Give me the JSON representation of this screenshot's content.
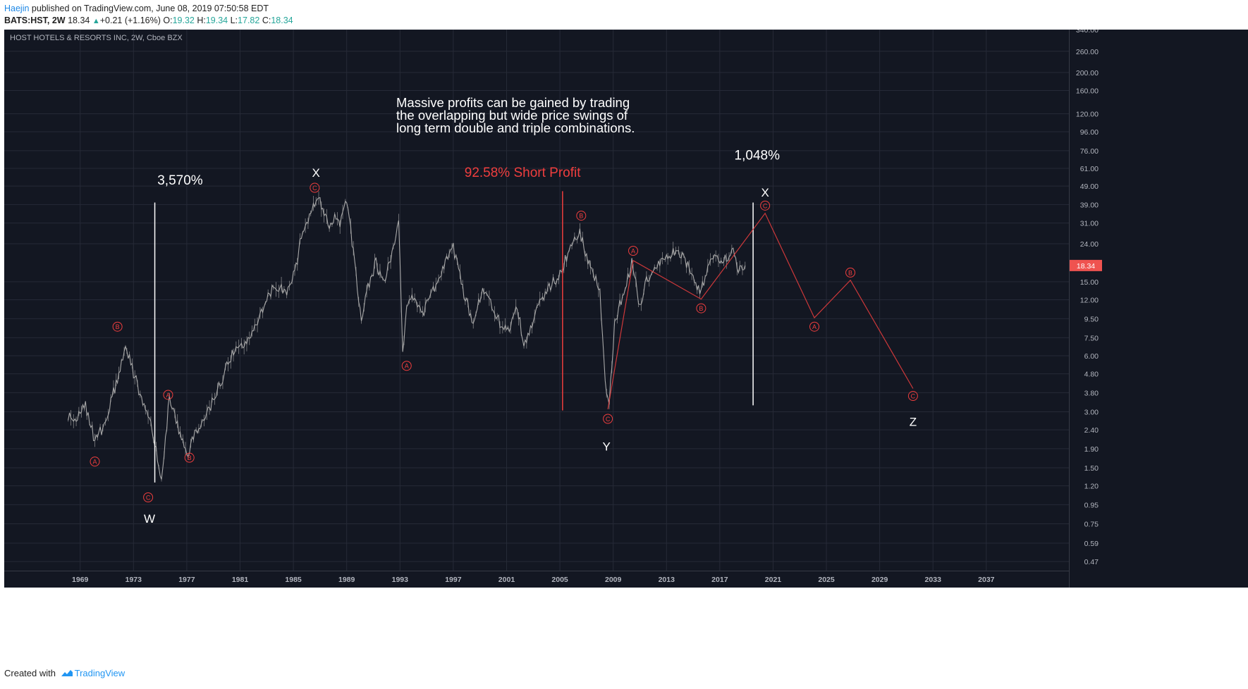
{
  "header": {
    "author": "Haejin",
    "published": "published on TradingView.com, June 08, 2019 07:50:58 EDT",
    "symbol": "BATS:HST, 2W",
    "last": "18.34",
    "change": "+0.21 (+1.16%)",
    "o_label": "O:",
    "o": "19.32",
    "h_label": "H:",
    "h": "19.34",
    "l_label": "L:",
    "l": "17.82",
    "c_label": "C:",
    "c": "18.34"
  },
  "footer": {
    "created_with": "Created with",
    "brand": "TradingView"
  },
  "colors": {
    "background": "#131722",
    "grid": "#262a37",
    "text": "#b2b5be",
    "white": "#ffffff",
    "red": "#ef3e3e",
    "candle": "#a8a8a8",
    "price_tag": "#ef5350"
  },
  "chart_data": {
    "type": "line",
    "title": "HOST HOTELS & RESORTS INC, 2W, Cboe BZX",
    "y_scale": "log",
    "ylim": [
      0.42,
      340
    ],
    "xlim": [
      1963.8,
      2043.7
    ],
    "y_ticks": [
      "340.00",
      "260.00",
      "200.00",
      "160.00",
      "120.00",
      "96.00",
      "76.00",
      "61.00",
      "49.00",
      "39.00",
      "31.00",
      "24.00",
      "18.34",
      "15.00",
      "12.00",
      "9.50",
      "7.50",
      "6.00",
      "4.80",
      "3.80",
      "3.00",
      "2.40",
      "1.90",
      "1.50",
      "1.20",
      "0.95",
      "0.75",
      "0.59",
      "0.47"
    ],
    "x_ticks": [
      "1969",
      "1973",
      "1977",
      "1981",
      "1985",
      "1989",
      "1993",
      "1997",
      "2001",
      "2005",
      "2009",
      "2013",
      "2017",
      "2021",
      "2025",
      "2029",
      "2033",
      "2037"
    ],
    "last_price": 18.34,
    "series": [
      {
        "x": [
          1968.6,
          1969.2,
          1969.9,
          1970.6,
          1971.4,
          1972.2,
          1972.9,
          1973.6,
          1974.2,
          1974.9,
          1975.6,
          1976.2,
          1976.8,
          1977.6,
          1978.2,
          1979.0,
          1980.0,
          1980.9,
          1981.6,
          1982.5,
          1983.3,
          1984.1,
          1985.0,
          1985.7,
          1986.2,
          1986.8,
          1987.3,
          1987.7,
          1988.1,
          1988.5,
          1989.0,
          1989.5,
          1990.0,
          1990.6,
          1991.1,
          1991.7,
          1992.3,
          1992.9,
          1993.4,
          1993.7,
          1994.0,
          1994.5,
          1995.2,
          1996.0,
          1996.8,
          1997.5,
          1998.3,
          1999.0,
          1999.7,
          2000.3,
          2001.0,
          2001.6,
          2002.3,
          2002.8,
          2003.3,
          2003.9,
          2004.7,
          2005.5,
          2006.3,
          2007.0,
          2007.5,
          2008.0,
          2008.5,
          2008.9,
          2009.2,
          2009.6,
          2010.2,
          2010.9,
          2011.5,
          2012.0,
          2012.6,
          2013.4,
          2014.2,
          2014.8,
          2015.4,
          2016.0,
          2016.7,
          2017.3,
          2018.0,
          2018.5,
          2018.9,
          2019.4
        ],
        "values": [
          2.9,
          2.8,
          3.2,
          2.1,
          2.6,
          4.3,
          6.8,
          4.6,
          3.4,
          2.4,
          1.3,
          3.6,
          2.5,
          1.8,
          2.4,
          2.9,
          4.2,
          6.2,
          6.8,
          8.2,
          11.0,
          14.5,
          13.0,
          18.0,
          29.0,
          34.0,
          44.0,
          38.0,
          30.0,
          33.0,
          31.0,
          40.0,
          22.0,
          9.0,
          14.0,
          19.0,
          14.5,
          22.0,
          31.0,
          6.5,
          10.5,
          12.5,
          10.0,
          13.5,
          18.0,
          23.0,
          13.0,
          8.5,
          14.0,
          11.5,
          9.0,
          8.0,
          11.0,
          7.0,
          8.5,
          11.0,
          14.0,
          16.5,
          23.0,
          28.0,
          20.0,
          17.0,
          13.0,
          4.5,
          3.2,
          9.0,
          12.5,
          19.0,
          11.0,
          15.0,
          17.5,
          20.0,
          22.5,
          20.0,
          17.0,
          13.0,
          19.0,
          20.5,
          19.5,
          22.0,
          17.0,
          18.34
        ]
      }
    ],
    "annotations": {
      "big_labels": [
        {
          "text": "3,570%",
          "x": 1977.0,
          "y": 50.0,
          "color": "white"
        },
        {
          "text": "X",
          "x": 1987.2,
          "y": 55.0,
          "color": "white"
        },
        {
          "text": "92.58% Short Profit",
          "x": 2002.7,
          "y": 55.0,
          "color": "red"
        },
        {
          "text": "1,048%",
          "x": 2020.3,
          "y": 68.0,
          "color": "white"
        },
        {
          "text": "X",
          "x": 2020.9,
          "y": 43.0,
          "color": "white"
        },
        {
          "text": "W",
          "x": 1974.7,
          "y": 0.76,
          "color": "white"
        },
        {
          "text": "Y",
          "x": 2009.0,
          "y": 1.86,
          "color": "white"
        },
        {
          "text": "Z",
          "x": 2032.0,
          "y": 2.52,
          "color": "white"
        }
      ],
      "text_block": [
        "Massive profits can be gained by trading",
        "the overlapping but wide price swings of",
        "long term double and triple combinations."
      ],
      "wave_circles": [
        {
          "label": "A",
          "x": 1970.6,
          "y": 1.62
        },
        {
          "label": "B",
          "x": 1972.3,
          "y": 8.6
        },
        {
          "label": "C",
          "x": 1974.6,
          "y": 1.04
        },
        {
          "label": "A",
          "x": 1976.1,
          "y": 3.7
        },
        {
          "label": "B",
          "x": 1977.7,
          "y": 1.7
        },
        {
          "label": "C",
          "x": 1987.1,
          "y": 48.0
        },
        {
          "label": "A",
          "x": 1994.0,
          "y": 5.3
        },
        {
          "label": "B",
          "x": 2007.1,
          "y": 34.0
        },
        {
          "label": "C",
          "x": 2009.1,
          "y": 2.75
        },
        {
          "label": "A",
          "x": 2011.0,
          "y": 22.0
        },
        {
          "label": "B",
          "x": 2016.1,
          "y": 10.8
        },
        {
          "label": "C",
          "x": 2020.9,
          "y": 38.5
        },
        {
          "label": "A",
          "x": 2024.6,
          "y": 8.6
        },
        {
          "label": "B",
          "x": 2027.3,
          "y": 16.8
        },
        {
          "label": "C",
          "x": 2032.0,
          "y": 3.65
        }
      ],
      "red_path": [
        {
          "x": 2009.1,
          "y": 3.1
        },
        {
          "x": 2011.0,
          "y": 19.5
        },
        {
          "x": 2016.1,
          "y": 12.1
        },
        {
          "x": 2020.9,
          "y": 35.0
        },
        {
          "x": 2024.6,
          "y": 9.6
        },
        {
          "x": 2027.3,
          "y": 15.3
        },
        {
          "x": 2032.0,
          "y": 4.0
        }
      ],
      "vertical_lines": [
        {
          "x": 1975.1,
          "y1": 1.25,
          "y2": 40.0,
          "color": "white"
        },
        {
          "x": 2005.7,
          "y1": 3.05,
          "y2": 46.0,
          "color": "red"
        },
        {
          "x": 2020.0,
          "y1": 3.25,
          "y2": 40.0,
          "color": "white"
        }
      ]
    }
  }
}
